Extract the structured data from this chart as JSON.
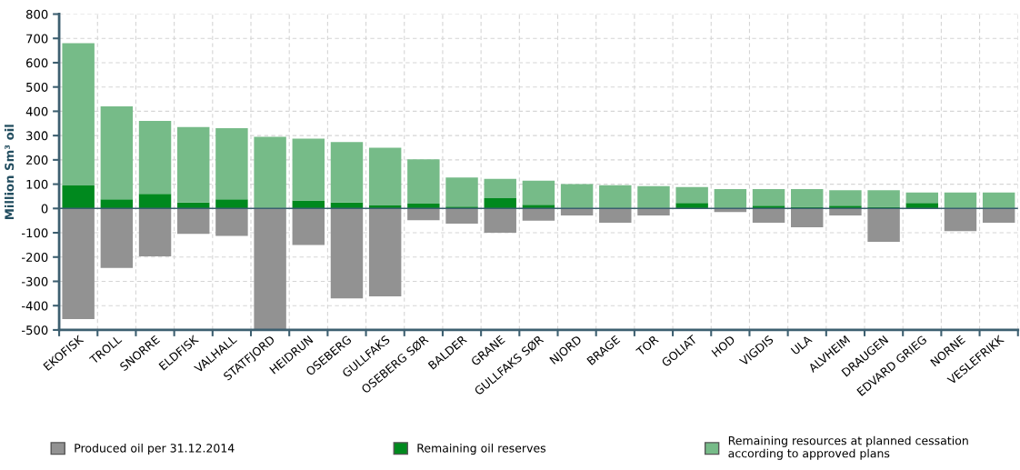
{
  "chart_data": {
    "type": "bar",
    "stacked": true,
    "ylabel": "Million Sm³ oil",
    "categories": [
      "EKOFISK",
      "TROLL",
      "SNORRE",
      "ELDFISK",
      "VALHALL",
      "STATFJORD",
      "HEIDRUN",
      "OSEBERG",
      "GULLFAKS",
      "OSEBERG SØR",
      "BALDER",
      "GRANE",
      "GULLFAKS SØR",
      "NJORD",
      "BRAGE",
      "TOR",
      "GOLIAT",
      "HOD",
      "VIGDIS",
      "ULA",
      "ALVHEIM",
      "DRAUGEN",
      "EDVARD GRIEG",
      "NORNE",
      "VESLEFRIKK"
    ],
    "series": [
      {
        "name": "Produced oil per 31.12.2014",
        "color": "#929292",
        "values": [
          -455,
          -245,
          -197,
          -105,
          -113,
          -500,
          -150,
          -370,
          -362,
          -48,
          -62,
          -100,
          -50,
          -29,
          -59,
          -29,
          0,
          -15,
          -59,
          -77,
          -29,
          -137,
          0,
          -93,
          -59
        ]
      },
      {
        "name": "Remaining oil reserves",
        "color": "#00891e",
        "values": [
          95,
          38,
          60,
          25,
          38,
          0,
          33,
          25,
          12,
          20,
          8,
          42,
          15,
          0,
          0,
          0,
          23,
          0,
          11,
          7,
          11,
          7,
          23,
          0,
          0
        ]
      },
      {
        "name": "Remaining resources at planned cessation\naccording to approved plans",
        "color": "#76bb88",
        "values": [
          585,
          382,
          300,
          310,
          292,
          295,
          254,
          248,
          238,
          182,
          119,
          80,
          99,
          100,
          96,
          92,
          65,
          80,
          69,
          73,
          64,
          68,
          43,
          66,
          66
        ]
      }
    ],
    "ylim": [
      -500,
      800
    ],
    "yticks": [
      -500,
      -400,
      -300,
      -200,
      -100,
      0,
      100,
      200,
      300,
      400,
      500,
      600,
      700,
      800
    ],
    "ref_lines": [
      {
        "axis": "y",
        "value": 0,
        "color": "#3d5f70"
      }
    ],
    "grid": true,
    "legend": "bottom"
  }
}
